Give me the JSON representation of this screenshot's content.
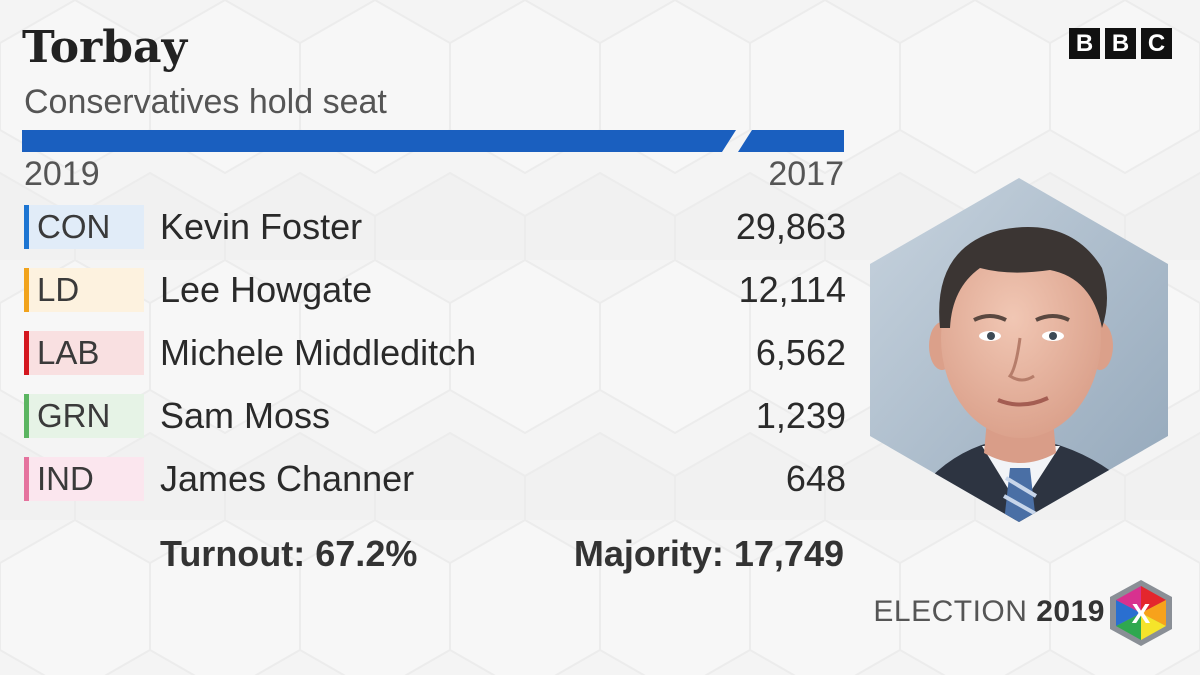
{
  "header": {
    "constituency": "Torbay",
    "result": "Conservatives hold seat"
  },
  "brand": {
    "logo_letters": [
      "B",
      "B",
      "C"
    ],
    "footer_label": "ELECTION",
    "footer_year": "2019",
    "logo_mark": "X"
  },
  "years": {
    "current": "2019",
    "previous": "2017"
  },
  "bar": {
    "color": "#1a5fbf",
    "previous_color": "#1a5fbf"
  },
  "results": [
    {
      "party": "CON",
      "candidate": "Kevin Foster",
      "votes": "29,863",
      "color": "#1d75d2",
      "tint": "#e1ecf8"
    },
    {
      "party": "LD",
      "candidate": "Lee Howgate",
      "votes": "12,114",
      "color": "#f1a31c",
      "tint": "#fdf2df"
    },
    {
      "party": "LAB",
      "candidate": "Michele Middleditch",
      "votes": "6,562",
      "color": "#d4171f",
      "tint": "#f9e0e1"
    },
    {
      "party": "GRN",
      "candidate": "Sam Moss",
      "votes": "1,239",
      "color": "#5bb561",
      "tint": "#e6f3e6"
    },
    {
      "party": "IND",
      "candidate": "James Channer",
      "votes": "648",
      "color": "#e5739e",
      "tint": "#fbe6ee"
    }
  ],
  "footer": {
    "turnout": "Turnout: 67.2%",
    "majority": "Majority: 17,749"
  },
  "portrait": {
    "subject": "winning-candidate-photo",
    "icon": "hexagon-portrait"
  }
}
